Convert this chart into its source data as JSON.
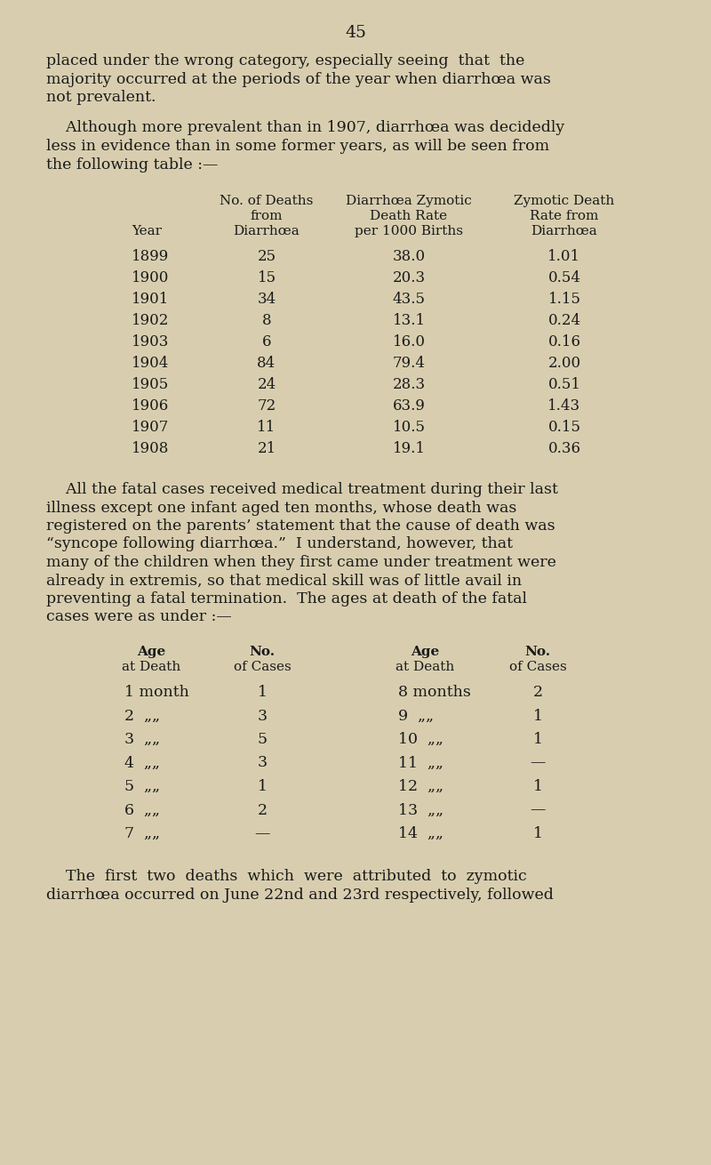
{
  "background_color": "#d8ceaf",
  "page_number": "45",
  "text_color": "#1a1a1a",
  "font_family": "DejaVu Serif",
  "para1_lines": [
    "placed under the wrong category, especially seeing  that  the",
    "majority occurred at the periods of the year when diarrhœa was",
    "not prevalent."
  ],
  "para2_lines": [
    "    Although more prevalent than in 1907, diarrhœa was decidedly",
    "less in evidence than in some former years, as will be seen from",
    "the following table :—"
  ],
  "table1_col_headers": [
    "Year",
    "No. of Deaths\nfrom\nDiarrhœa",
    "Diarrhœa Zymotic\nDeath Rate\nper 1000 Births",
    "Zymotic Death\nRate from\nDiarrhœa"
  ],
  "table1_data": [
    [
      "1899",
      "25",
      "38.0",
      "1.01"
    ],
    [
      "1900",
      "15",
      "20.3",
      "0.54"
    ],
    [
      "1901",
      "34",
      "43.5",
      "1.15"
    ],
    [
      "1902",
      "8",
      "13.1",
      "0.24"
    ],
    [
      "1903",
      "6",
      "16.0",
      "0.16"
    ],
    [
      "1904",
      "84",
      "79.4",
      "2.00"
    ],
    [
      "1905",
      "24",
      "28.3",
      "0.51"
    ],
    [
      "1906",
      "72",
      "63.9",
      "1.43"
    ],
    [
      "1907",
      "11",
      "10.5",
      "0.15"
    ],
    [
      "1908",
      "21",
      "19.1",
      "0.36"
    ]
  ],
  "para3_lines": [
    "    All the fatal cases received medical treatment during their last",
    "illness except one infant aged ten months, whose death was",
    "registered on the parents’ statement that the cause of death was",
    "“syncope following diarrhœa.”  I understand, however, that",
    "many of the children when they first came under treatment were",
    "already in extremis, so that medical skill was of little avail in",
    "preventing a fatal termination.  The ages at death of the fatal",
    "cases were as under :—"
  ],
  "table2_left_age": [
    "1 month",
    "2  „„",
    "3  „„",
    "4  „„",
    "5  „„",
    "6  „„",
    "7  „„"
  ],
  "table2_left_cases": [
    "1",
    "3",
    "5",
    "3",
    "1",
    "2",
    "—"
  ],
  "table2_right_age": [
    "8 months",
    "9  „„",
    "10  „„",
    "11  „„",
    "12  „„",
    "13  „„",
    "14  „„"
  ],
  "table2_right_cases": [
    "2",
    "1",
    "1",
    "—",
    "1",
    "—",
    "1"
  ],
  "para4_lines": [
    "    The  first  two  deaths  which  were  attributed  to  zymotic",
    "diarrhœa occurred on June 22nd and 23rd respectively, followed"
  ]
}
